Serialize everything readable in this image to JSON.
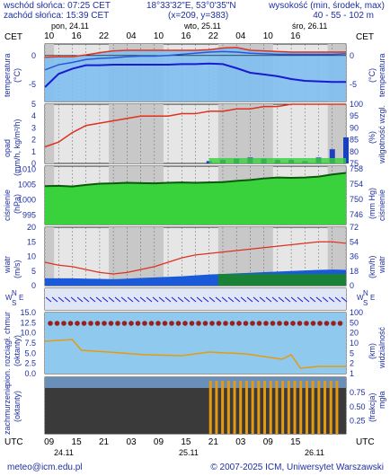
{
  "header": {
    "sunrise": "wschód słońca: 07:25 CET",
    "sunset": "zachód słońca: 15:39 CET",
    "coords": "18°33'32\"E, 53°0'35\"N",
    "grid": "(x=209, y=383)",
    "height_label": "wysokość (min, środek, max)",
    "height_values": "40 - 55 - 102 m"
  },
  "timezone_left": "CET",
  "timezone_right": "CET",
  "days_top": [
    "pon, 24.11",
    "wto, 25.11",
    "śro, 26.11"
  ],
  "hours_top": [
    "10",
    "16",
    "22",
    "04",
    "10",
    "16",
    "22",
    "04",
    "10",
    "16"
  ],
  "hours_bottom": [
    "09",
    "15",
    "21",
    "03",
    "09",
    "15",
    "21",
    "03",
    "09",
    "15"
  ],
  "dates_bottom": [
    "24.11",
    "25.11",
    "26.11"
  ],
  "utc_left": "UTC",
  "utc_right": "UTC",
  "panels": {
    "temperature": {
      "left_label": "temperatura",
      "left_unit": "(°C)",
      "right_label": "temperatura",
      "right_unit": "(°C)",
      "left_ticks": [
        "0",
        "-5"
      ],
      "right_ticks": [
        "0",
        "-5"
      ]
    },
    "precip": {
      "left_label": "opad",
      "left_unit": "(mm/h, kg/m²/h)",
      "right_label": "wilgotność wzgl.",
      "right_unit": "(%)",
      "left_ticks": [
        "5",
        "4",
        "3",
        "2",
        "1",
        "0"
      ],
      "right_ticks": [
        "100",
        "95",
        "90",
        "85",
        "80",
        "75"
      ]
    },
    "pressure": {
      "left_label": "ciśnienie",
      "left_unit": "(hPa)",
      "right_label": "ciśnienie",
      "right_unit": "(mm Hg)",
      "left_ticks": [
        "1010",
        "1005",
        "1000",
        "995"
      ],
      "right_ticks": [
        "758",
        "754",
        "750",
        "746"
      ]
    },
    "wind": {
      "left_label": "wiatr",
      "left_unit": "(m/s)",
      "right_label": "wiatr",
      "right_unit": "(km/h)",
      "left_ticks": [
        "20",
        "15",
        "10",
        "5",
        "0"
      ],
      "right_ticks": [
        "72",
        "54",
        "36",
        "18",
        "0"
      ]
    },
    "wind_dir": {
      "left": [
        "W",
        "N",
        "E",
        "S"
      ],
      "right": [
        "W",
        "N",
        "E",
        "S"
      ]
    },
    "visibility": {
      "left_label": "pion. rozciągł. chmur",
      "left_unit": "(oktanty)",
      "right_label": "widzialność",
      "right_unit": "(km)",
      "left_ticks": [
        "15.0",
        "12.5",
        "10.0",
        "7.5",
        "5.0",
        "2.5",
        "0.0"
      ],
      "right_ticks": [
        "100",
        "50",
        "20",
        "10",
        "5",
        "2",
        "1"
      ]
    },
    "clouds": {
      "left_label": "zachmurzenie",
      "left_unit": "(oktanty)",
      "right_label": "mgła",
      "right_unit": "(frakcja)",
      "right_ticks": [
        "0.75",
        "0.50",
        "0.25"
      ]
    }
  },
  "footer": {
    "left": "meteo@icm.edu.pl",
    "right": "© 2007-2025 ICM, Uniwersytet Warszawski"
  },
  "colors": {
    "text": "#1e2fa0",
    "grid_bg": "#cfcfcf",
    "temp_fill": "#7fbff0",
    "red_line": "#e03020",
    "green_dark": "#1a8a1a",
    "green_light": "#39d13c",
    "orange": "#e79a10",
    "cloud_dark": "#3a3a3a"
  },
  "chart_data": [
    {
      "type": "line",
      "title": "temperatura",
      "ylabel": "(°C)",
      "ylim": [
        -8,
        2
      ],
      "x": [
        0,
        3,
        6,
        9,
        12,
        15,
        18,
        21,
        24,
        27,
        30,
        33,
        36,
        39,
        42,
        45,
        48,
        51,
        54,
        57,
        60,
        63,
        66
      ],
      "series": [
        {
          "values": [
            -0.3,
            -0.2,
            -0.2,
            0.1,
            0.5,
            0.8,
            0.9,
            0.9,
            0.9,
            0.9,
            0.9,
            0.9,
            1.0,
            1.3,
            1.4,
            0.9,
            0.8,
            0.7,
            0.6,
            0.6,
            0.6,
            0.6,
            0.6
          ]
        },
        {
          "values": [
            -2.5,
            -1.6,
            -1.2,
            -0.7,
            -0.5,
            -0.4,
            -0.2,
            -0.1,
            -0.1,
            0.0,
            0.2,
            0.4,
            0.6,
            0.7,
            0.6,
            0.4,
            0.3,
            0.2,
            0.2,
            0.2,
            0.2,
            0.2,
            0.3
          ]
        },
        {
          "values": [
            -5.5,
            -3.2,
            -2.3,
            -1.7,
            -1.7,
            -1.6,
            -1.6,
            -1.6,
            -1.6,
            -1.6,
            -1.5,
            -1.5,
            -1.4,
            -1.5,
            -2.2,
            -3.0,
            -3.3,
            -3.6,
            -4.1,
            -4.4,
            -4.5,
            -4.6,
            -4.6
          ]
        }
      ]
    },
    {
      "type": "bar",
      "title": "opad / wilgotność wzgl.",
      "ylim": [
        0,
        5
      ],
      "x": [
        0,
        3,
        6,
        9,
        12,
        15,
        18,
        21,
        24,
        27,
        30,
        33,
        36,
        39,
        42,
        45,
        48,
        51,
        54,
        57,
        60,
        63,
        66
      ],
      "series": [
        {
          "name": "opad",
          "values": [
            0,
            0,
            0,
            0,
            0,
            0,
            0,
            0,
            0,
            0,
            0,
            0,
            0.2,
            0.3,
            0.4,
            0.5,
            0.4,
            0.3,
            0.3,
            0.2,
            0.5,
            1.2,
            2.2
          ]
        },
        {
          "name": "wilgotność wzgl.",
          "values": [
            82,
            84,
            88,
            91,
            92,
            93,
            94,
            95,
            95,
            95,
            96,
            96,
            97,
            97,
            98,
            98,
            99,
            99,
            100,
            100,
            100,
            100,
            100
          ]
        }
      ]
    },
    {
      "type": "area",
      "title": "ciśnienie",
      "ylabel": "(hPa)",
      "ylim": [
        992,
        1011
      ],
      "x": [
        0,
        3,
        6,
        9,
        12,
        15,
        18,
        21,
        24,
        27,
        30,
        33,
        36,
        39,
        42,
        45,
        48,
        51,
        54,
        57,
        60,
        63,
        66
      ],
      "series": [
        {
          "values": [
            1004.5,
            1004.6,
            1004.4,
            1004.9,
            1005.3,
            1005.4,
            1005.6,
            1005.5,
            1005.4,
            1005.6,
            1005.7,
            1005.6,
            1005.7,
            1005.8,
            1006.2,
            1006.5,
            1007.0,
            1007.3,
            1007.2,
            1007.3,
            1007.6,
            1008.3,
            1008.8
          ]
        }
      ]
    },
    {
      "type": "line",
      "title": "wiatr",
      "ylabel": "(m/s)",
      "ylim": [
        0,
        20
      ],
      "x": [
        0,
        3,
        6,
        9,
        12,
        15,
        18,
        21,
        24,
        27,
        30,
        33,
        36,
        39,
        42,
        45,
        48,
        51,
        54,
        57,
        60,
        63,
        66
      ],
      "series": [
        {
          "name": "porywy",
          "values": [
            8,
            7,
            6.5,
            5.5,
            4.5,
            4.0,
            4.5,
            5.5,
            6.5,
            8,
            9.5,
            10.5,
            11,
            11.5,
            12,
            12.5,
            13,
            13.5,
            14,
            14.5,
            15,
            15,
            14.5
          ]
        },
        {
          "name": "prędkość",
          "values": [
            2.5,
            2.5,
            2.5,
            2.4,
            2.3,
            2.2,
            2.4,
            2.6,
            2.8,
            3,
            3.2,
            3.5,
            3.8,
            4.0,
            4.2,
            4.4,
            4.6,
            4.8,
            5.0,
            5.2,
            5.4,
            5.5,
            5.4
          ]
        }
      ]
    }
  ]
}
